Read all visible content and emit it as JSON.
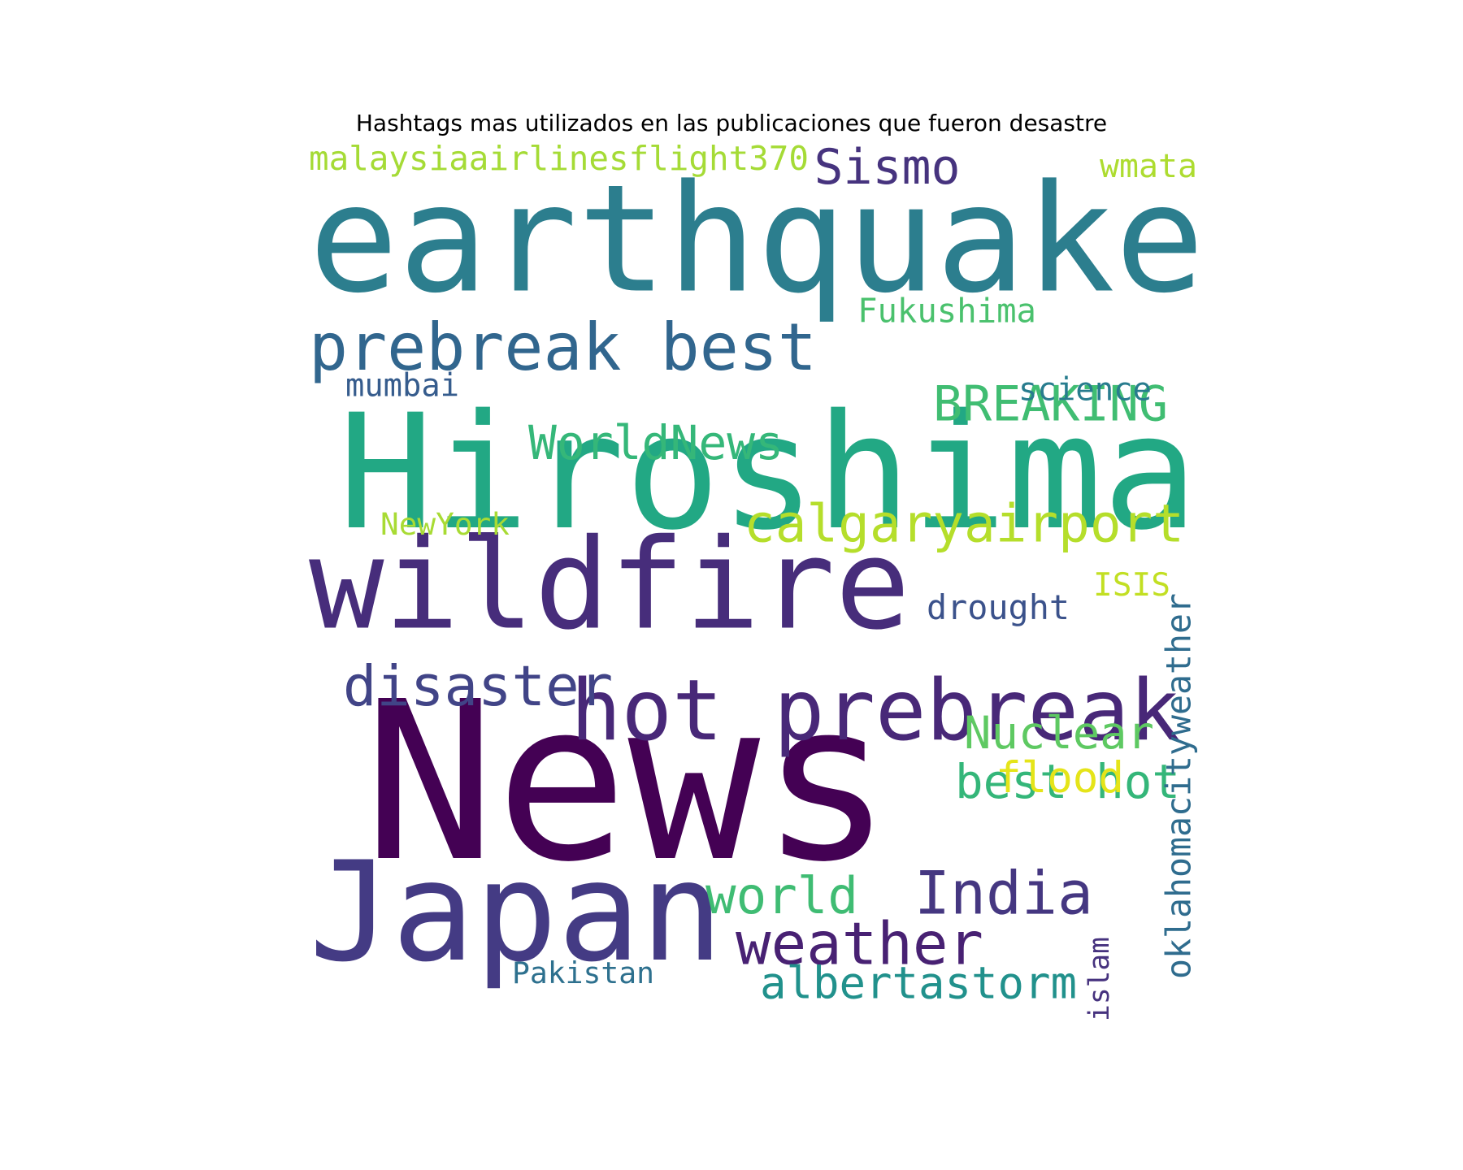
{
  "chart_data": {
    "type": "wordcloud",
    "title": "Hashtags mas utilizados en las publicaciones que fueron desastre",
    "words": [
      {
        "text": "News",
        "color": "#440154"
      },
      {
        "text": "Hiroshima",
        "color": "#22a884"
      },
      {
        "text": "earthquake",
        "color": "#2c7e8e"
      },
      {
        "text": "wildfire",
        "color": "#472d7b"
      },
      {
        "text": "Japan",
        "color": "#443b84"
      },
      {
        "text": "hot prebreak",
        "color": "#482878"
      },
      {
        "text": "prebreak best",
        "color": "#31668e"
      },
      {
        "text": "weather",
        "color": "#482173"
      },
      {
        "text": "India",
        "color": "#453781"
      },
      {
        "text": "calgaryairport",
        "color": "#b5de2b"
      },
      {
        "text": "world",
        "color": "#3fbc73"
      },
      {
        "text": "albertastorm",
        "color": "#21918c"
      },
      {
        "text": "disaster",
        "color": "#414487"
      },
      {
        "text": "WorldNews",
        "color": "#35b779"
      },
      {
        "text": "BREAKING",
        "color": "#40bd72"
      },
      {
        "text": "best hot",
        "color": "#34b679"
      },
      {
        "text": "Nuclear",
        "color": "#5ec962"
      },
      {
        "text": "flood",
        "color": "#e5e419"
      },
      {
        "text": "Sismo",
        "color": "#46337e"
      },
      {
        "text": "malaysiaairlinesflight370",
        "color": "#a5db36"
      },
      {
        "text": "oklahomacityweather",
        "color": "#2f6c8e"
      },
      {
        "text": "Fukushima",
        "color": "#4ac16d"
      },
      {
        "text": "drought",
        "color": "#3b528b"
      },
      {
        "text": "islam",
        "color": "#46327e"
      },
      {
        "text": "Pakistan",
        "color": "#2d708e"
      },
      {
        "text": "science",
        "color": "#287c8e"
      },
      {
        "text": "mumbai",
        "color": "#365c8d"
      },
      {
        "text": "NewYork",
        "color": "#a8db34"
      },
      {
        "text": "ISIS",
        "color": "#c2df23"
      },
      {
        "text": "wmata",
        "color": "#addc30"
      }
    ]
  }
}
